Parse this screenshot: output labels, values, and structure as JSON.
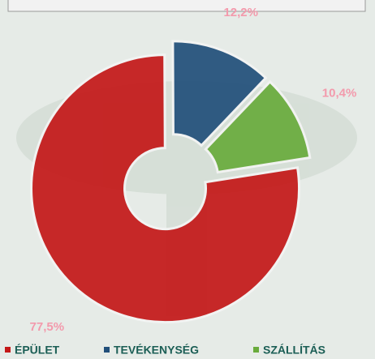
{
  "chart_data": {
    "type": "pie",
    "donut": true,
    "categories": [
      "ÉPÜLET",
      "TEVÉKENYSÉG",
      "SZÁLLÍTÁS"
    ],
    "values": [
      77.5,
      12.2,
      10.4
    ],
    "value_labels": [
      "77,5%",
      "12,2%",
      "10,4%"
    ],
    "colors": [
      "#c41818",
      "#214f7a",
      "#69ab3c"
    ]
  }
}
